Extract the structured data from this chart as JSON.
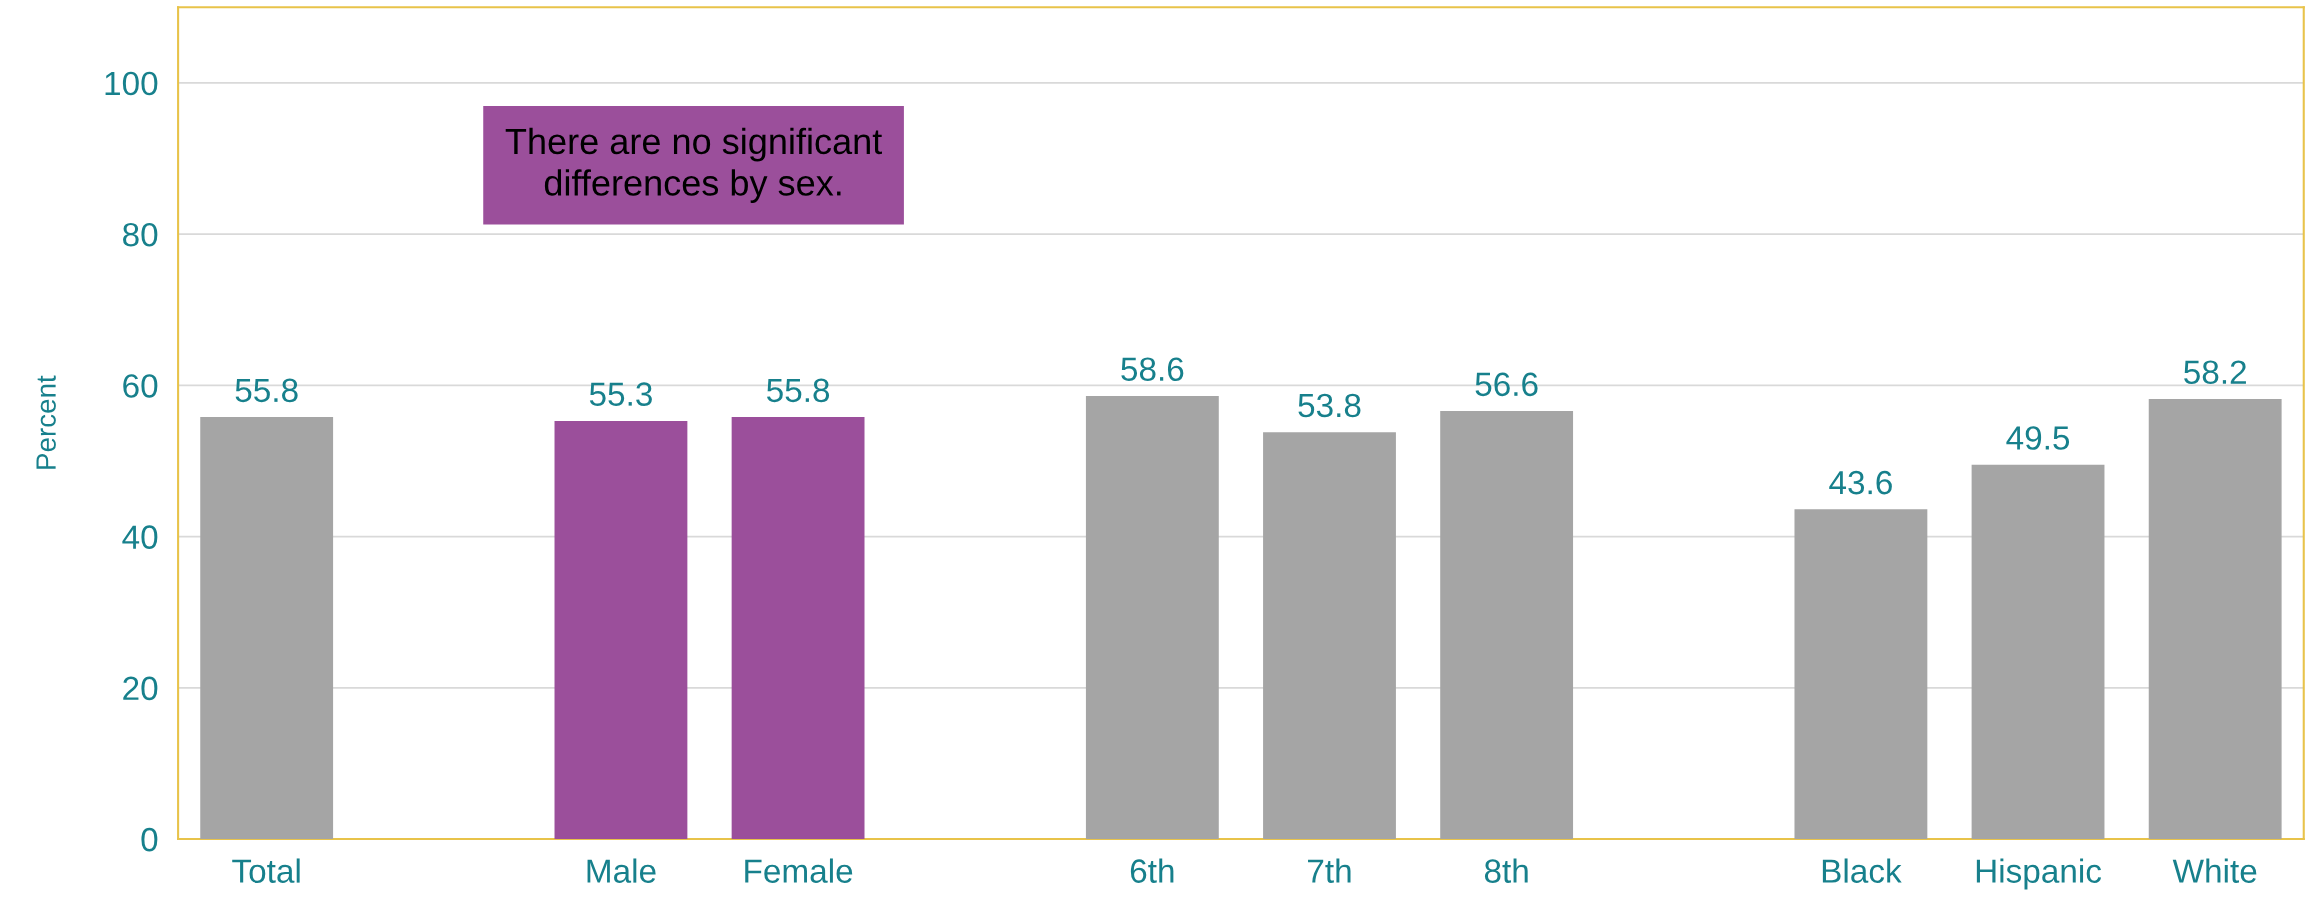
{
  "chart_data": {
    "type": "bar",
    "ylabel": "Percent",
    "categories": [
      "Total",
      null,
      "Male",
      "Female",
      null,
      "6th",
      "7th",
      "8th",
      null,
      "Black",
      "Hispanic",
      "White"
    ],
    "values": [
      55.8,
      null,
      55.3,
      55.8,
      null,
      58.6,
      53.8,
      56.6,
      null,
      43.6,
      49.5,
      58.2
    ],
    "colors": [
      "#a5a5a5",
      null,
      "#9b4f9b",
      "#9b4f9b",
      null,
      "#a5a5a5",
      "#a5a5a5",
      "#a5a5a5",
      null,
      "#a5a5a5",
      "#a5a5a5",
      "#a5a5a5"
    ],
    "ylim": [
      0,
      110
    ],
    "yticks": [
      0,
      20,
      40,
      60,
      80,
      100
    ],
    "grid": "y",
    "data_labels": true,
    "annotations": [
      "There are no significant\ndifferences by sex."
    ]
  }
}
